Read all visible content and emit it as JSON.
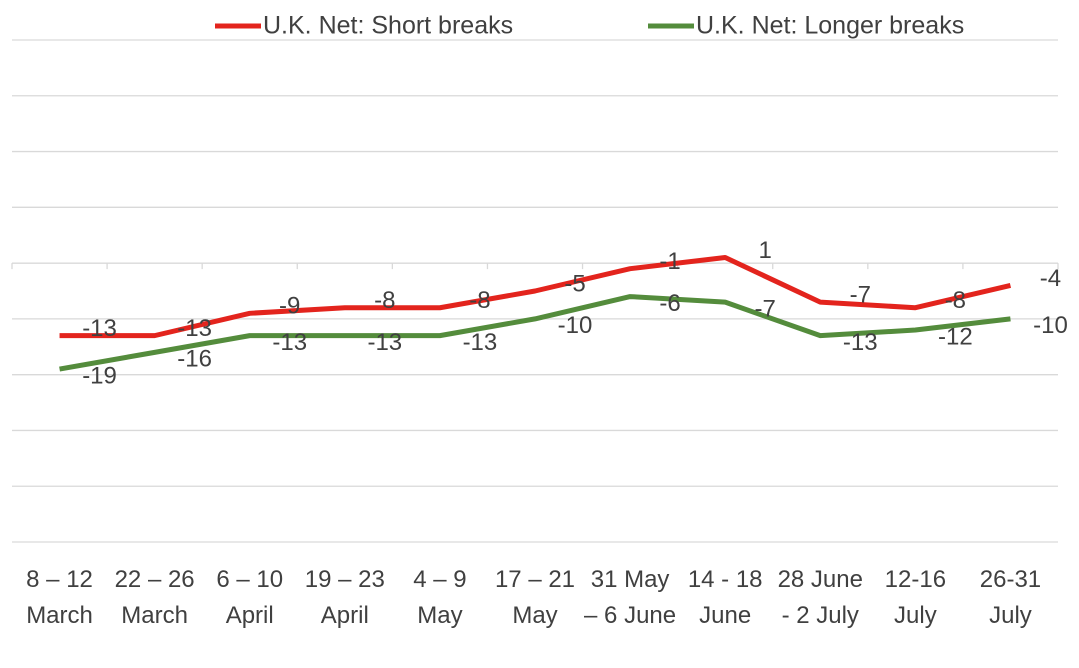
{
  "chart_data": {
    "type": "line",
    "categories": [
      "8 – 12 March",
      "22 – 26 March",
      "6 – 10 April",
      "19 – 23 April",
      "4 – 9 May",
      "17 – 21 May",
      "31 May – 6 June",
      "14 - 18 June",
      "28 June - 2 July",
      "12-16 July",
      "26-31 July"
    ],
    "series": [
      {
        "name": "U.K. Net: Short breaks",
        "color": "#e3241d",
        "values": [
          -13,
          -13,
          -9,
          -8,
          -8,
          -5,
          -1,
          1,
          -7,
          -8,
          -4
        ]
      },
      {
        "name": "U.K. Net: Longer breaks",
        "color": "#548c3c",
        "values": [
          -19,
          -16,
          -13,
          -13,
          -13,
          -10,
          -6,
          -7,
          -13,
          -12,
          -10
        ]
      }
    ],
    "ylim": [
      -50,
      40
    ],
    "yticks": [
      -50,
      -40,
      -30,
      -20,
      -10,
      0,
      10,
      20,
      30,
      40
    ],
    "grid": true,
    "legend": "top"
  }
}
